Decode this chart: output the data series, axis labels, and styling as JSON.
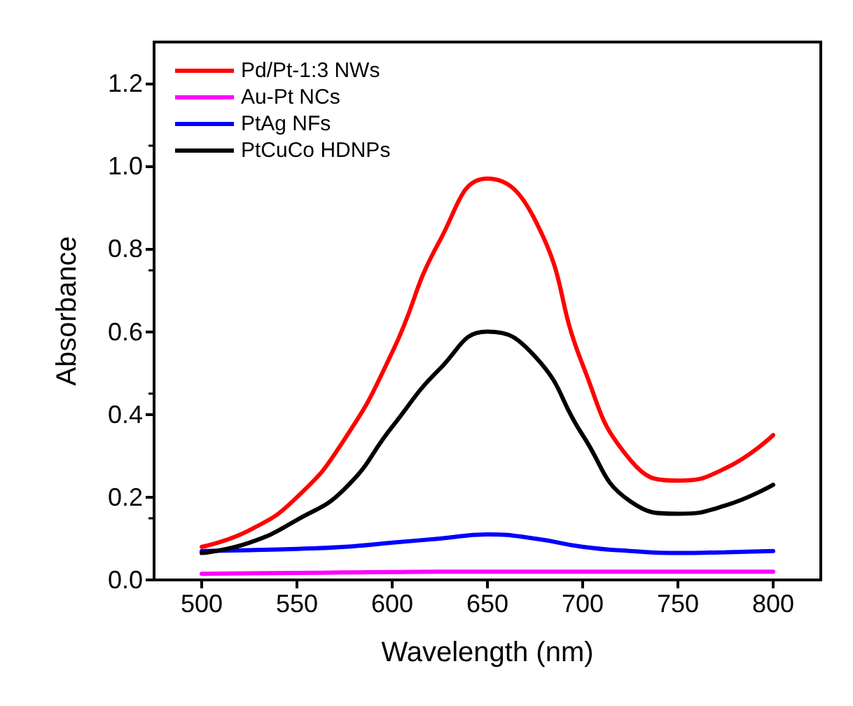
{
  "chart_data": {
    "type": "line",
    "xlabel": "Wavelength (nm)",
    "ylabel": "Absorbance",
    "xlim": [
      475,
      825
    ],
    "xticks": [
      500,
      550,
      600,
      650,
      700,
      750,
      800
    ],
    "ylim": [
      0,
      1.3
    ],
    "yticks": [
      {
        "value": 0,
        "label": "0.0"
      },
      0.2,
      0.4,
      0.6,
      0.8,
      {
        "value": 1,
        "label": "1.0"
      },
      1.2
    ],
    "grid": false,
    "legend": "top left",
    "marker": "none",
    "line_style": "solid",
    "x": [
      500,
      525,
      550,
      575,
      600,
      625,
      650,
      675,
      700,
      725,
      750,
      775,
      800
    ],
    "series": [
      {
        "name": "Pd/Pt-1:3 NWs",
        "color": "#ff0000",
        "values": [
          0.08,
          0.12,
          0.2,
          0.34,
          0.55,
          0.82,
          0.97,
          0.87,
          0.52,
          0.29,
          0.24,
          0.27,
          0.35
        ]
      },
      {
        "name": "Au-Pt NCs",
        "color": "#ff00ff",
        "values": [
          0.015,
          0.016,
          0.017,
          0.018,
          0.019,
          0.02,
          0.02,
          0.02,
          0.02,
          0.02,
          0.02,
          0.02,
          0.02
        ]
      },
      {
        "name": "PtAg NFs",
        "color": "#0000ff",
        "values": [
          0.07,
          0.072,
          0.075,
          0.08,
          0.09,
          0.1,
          0.11,
          0.1,
          0.08,
          0.07,
          0.065,
          0.067,
          0.07
        ]
      },
      {
        "name": "PtCuCo HDNPs",
        "color": "#000000",
        "values": [
          0.065,
          0.09,
          0.145,
          0.22,
          0.37,
          0.51,
          0.6,
          0.54,
          0.35,
          0.19,
          0.16,
          0.18,
          0.23
        ]
      }
    ]
  }
}
